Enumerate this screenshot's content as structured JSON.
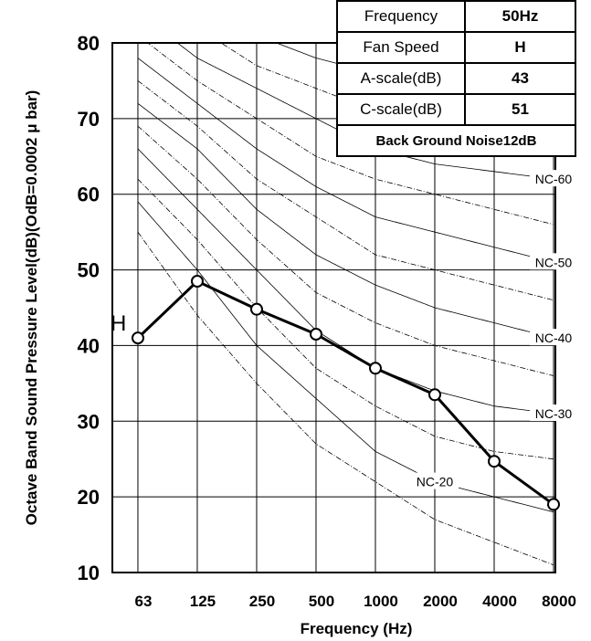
{
  "chart_data": {
    "type": "line",
    "title": "",
    "xlabel": "Frequency (Hz)",
    "ylabel": "Octave Band Sound Pressure Level(dB)(OdB=0.0002 μ bar)",
    "categories": [
      "63",
      "125",
      "250",
      "500",
      "1000",
      "2000",
      "4000",
      "8000"
    ],
    "ylim": [
      10,
      80
    ],
    "yticks": [
      "10",
      "20",
      "30",
      "40",
      "50",
      "60",
      "70",
      "80"
    ],
    "grid": true,
    "series": [
      {
        "name": "H",
        "values": [
          41,
          48.5,
          44.8,
          41.5,
          37,
          33.5,
          24.7,
          19
        ]
      }
    ],
    "nc_curves": [
      {
        "label": "",
        "values": [
          55,
          44,
          35,
          27,
          22,
          17,
          14,
          11
        ]
      },
      {
        "label": "NC-20",
        "values": [
          59,
          50,
          40,
          33,
          26,
          22,
          20,
          18
        ]
      },
      {
        "label": "",
        "values": [
          62,
          54,
          45,
          37,
          32,
          28,
          26,
          25
        ]
      },
      {
        "label": "NC-30",
        "values": [
          66,
          58,
          50,
          42,
          37,
          34,
          32,
          31
        ]
      },
      {
        "label": "",
        "values": [
          69,
          62,
          54,
          47,
          43,
          40,
          38,
          36
        ]
      },
      {
        "label": "NC-40",
        "values": [
          72,
          66,
          58,
          52,
          48,
          45,
          43,
          41
        ]
      },
      {
        "label": "",
        "values": [
          75,
          69,
          62,
          57,
          52,
          50,
          48,
          46
        ]
      },
      {
        "label": "NC-50",
        "values": [
          78,
          72,
          66,
          61,
          57,
          55,
          53,
          51
        ]
      },
      {
        "label": "",
        "values": [
          81,
          75,
          70,
          65,
          62,
          60,
          58,
          56
        ]
      },
      {
        "label": "NC-60",
        "values": [
          84,
          78,
          74,
          70,
          66,
          64,
          63,
          62
        ]
      },
      {
        "label": "",
        "values": [
          87,
          82,
          77,
          74,
          71,
          69,
          68,
          67
        ]
      },
      {
        "label": "",
        "values": [
          90,
          85,
          81,
          78,
          76,
          74,
          73,
          72
        ]
      }
    ],
    "nc_label_x": [
      5.0,
      7.0,
      7.0,
      7.0,
      7.0
    ]
  },
  "info_table": {
    "rows": [
      {
        "key": "Frequency",
        "value": "50Hz"
      },
      {
        "key": "Fan Speed",
        "value": "H"
      },
      {
        "key": "A-scale(dB)",
        "value": "43"
      },
      {
        "key": "C-scale(dB)",
        "value": "51"
      }
    ],
    "note": "Back Ground Noise12dB"
  }
}
